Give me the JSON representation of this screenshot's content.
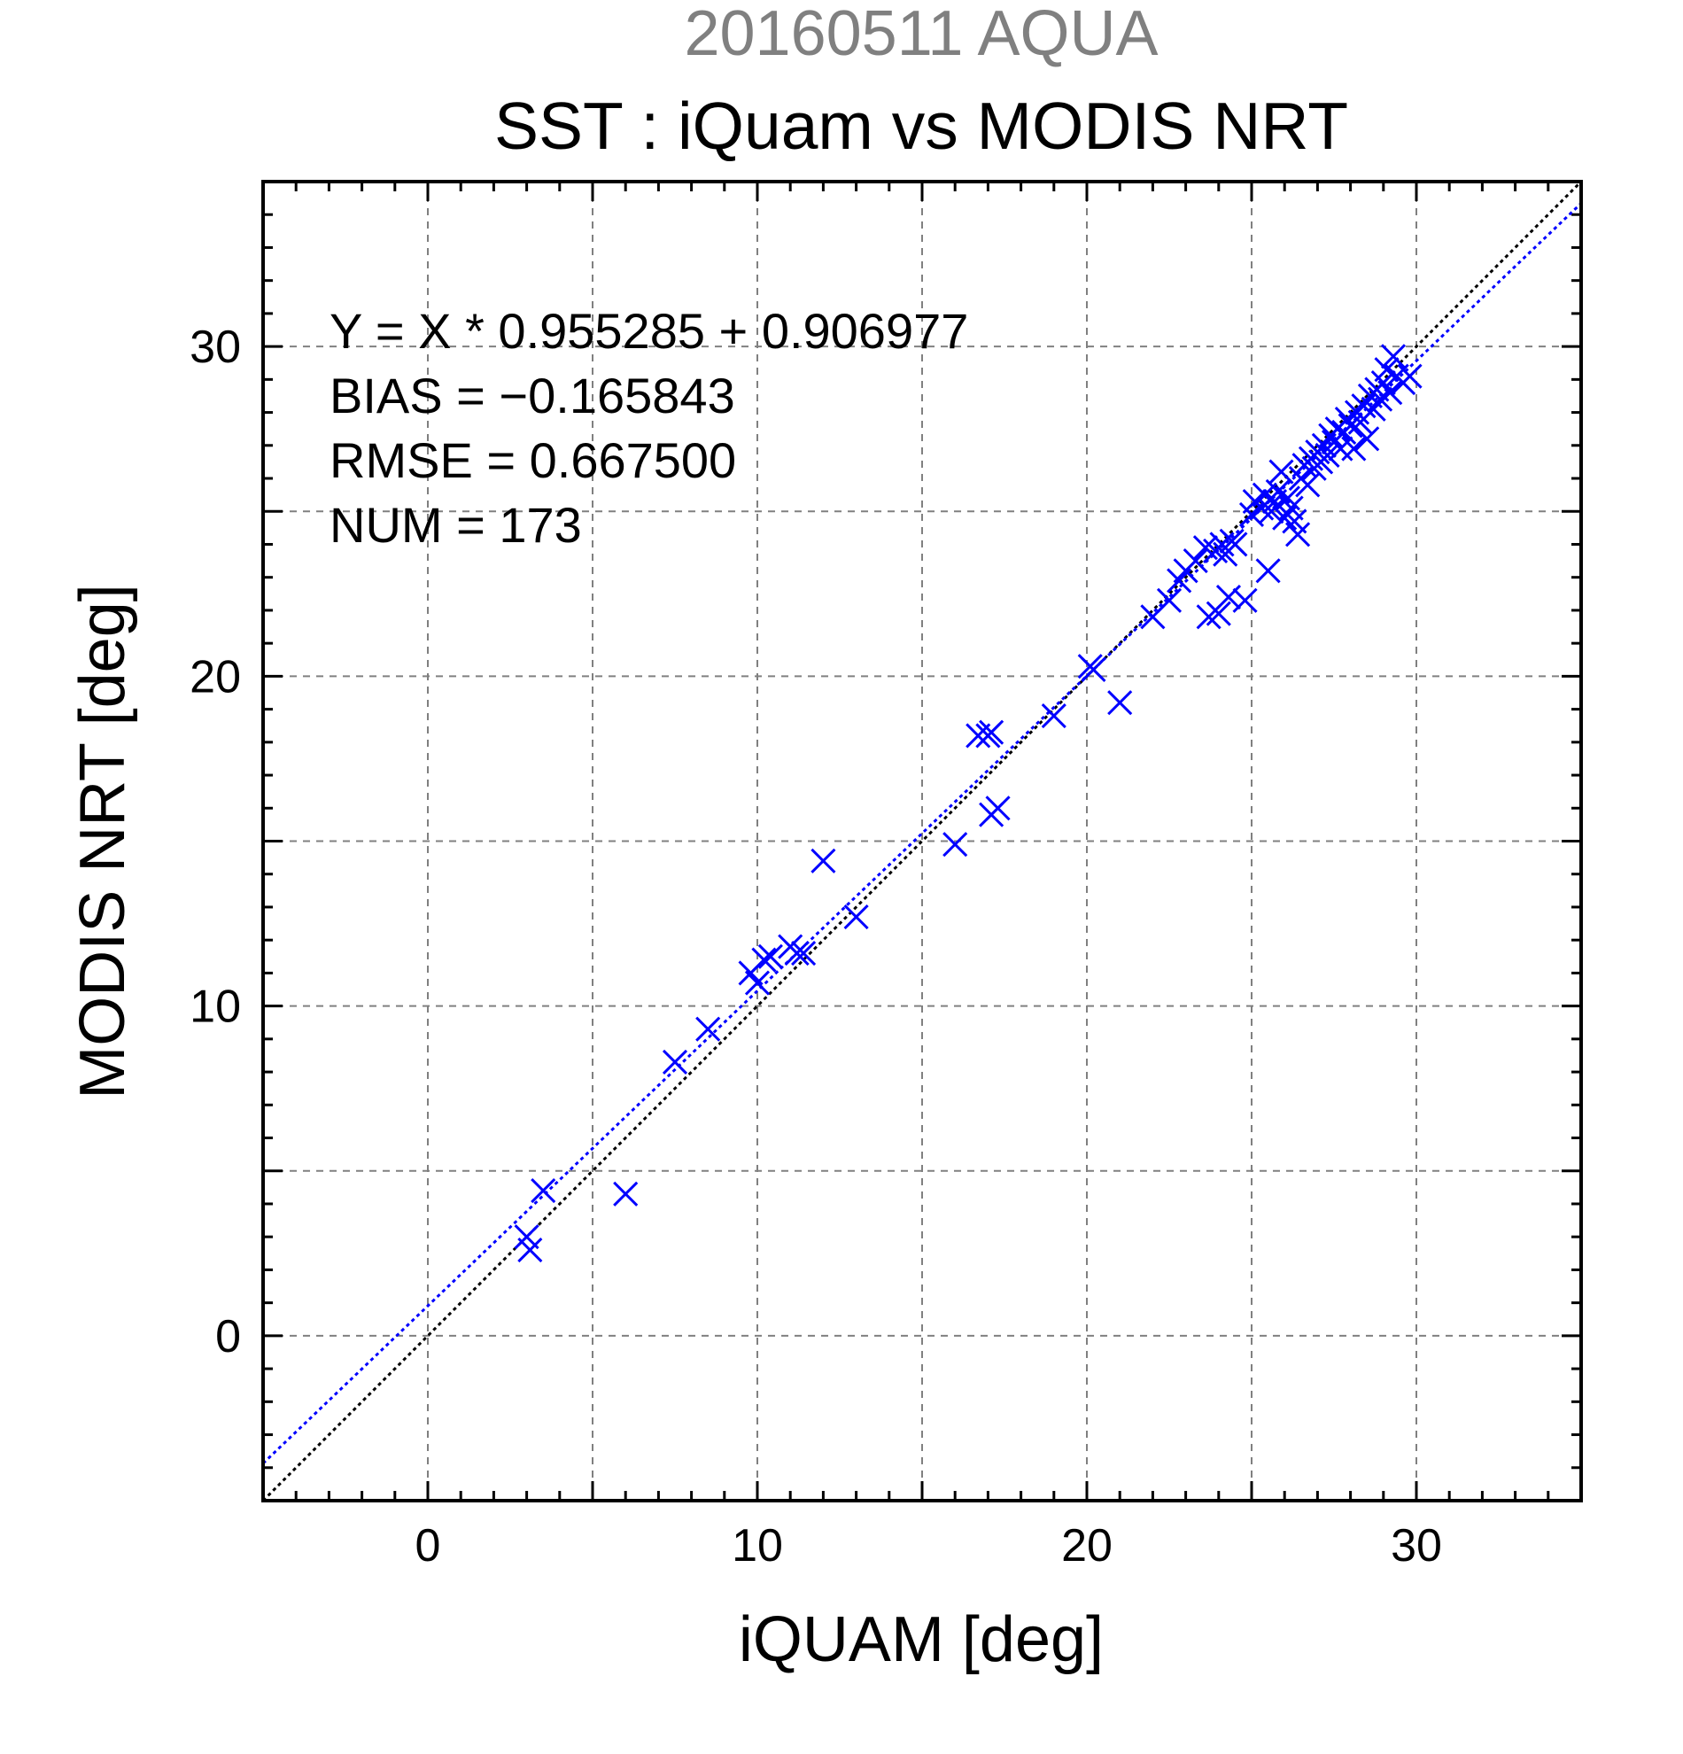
{
  "chart_data": {
    "type": "scatter",
    "supertitle": "20160511 AQUA",
    "title": "SST : iQuam vs MODIS NRT",
    "xlabel": "iQUAM [deg]",
    "ylabel": "MODIS NRT [deg]",
    "xlim": [
      -5,
      35
    ],
    "ylim": [
      -5,
      35
    ],
    "xticks": [
      0,
      10,
      20,
      30
    ],
    "yticks": [
      0,
      10,
      20,
      30
    ],
    "grid": true,
    "annotations": [
      "Y = X * 0.955285 + 0.906977",
      "BIAS = −0.165843",
      "RMSE = 0.667500",
      "NUM = 173"
    ],
    "lines": [
      {
        "kind": "identity",
        "slope": 1.0,
        "intercept": 0.0,
        "color": "#000000"
      },
      {
        "kind": "regression",
        "slope": 0.955285,
        "intercept": 0.906977,
        "color": "#0000ff"
      }
    ],
    "marker_color": "#0000ff",
    "series": [
      {
        "marker": "x",
        "points": [
          [
            3.0,
            3.0
          ],
          [
            3.1,
            2.6
          ],
          [
            3.5,
            4.4
          ],
          [
            6.0,
            4.3
          ],
          [
            7.5,
            8.3
          ],
          [
            8.5,
            9.3
          ],
          [
            9.8,
            11.0
          ],
          [
            10.0,
            10.7
          ],
          [
            10.2,
            11.4
          ],
          [
            10.4,
            11.5
          ],
          [
            11.0,
            11.8
          ],
          [
            11.2,
            11.6
          ],
          [
            11.4,
            11.6
          ],
          [
            12.0,
            14.4
          ],
          [
            13.0,
            12.7
          ],
          [
            16.0,
            14.9
          ],
          [
            16.7,
            18.2
          ],
          [
            17.0,
            18.2
          ],
          [
            17.1,
            18.3
          ],
          [
            17.1,
            15.8
          ],
          [
            17.3,
            16.0
          ],
          [
            19.0,
            18.8
          ],
          [
            20.1,
            20.3
          ],
          [
            20.2,
            20.2
          ],
          [
            21.0,
            19.2
          ],
          [
            22.0,
            21.8
          ],
          [
            22.5,
            22.3
          ],
          [
            22.8,
            22.9
          ],
          [
            23.0,
            23.2
          ],
          [
            23.3,
            23.5
          ],
          [
            23.6,
            23.9
          ],
          [
            23.7,
            21.8
          ],
          [
            24.0,
            21.9
          ],
          [
            23.9,
            23.8
          ],
          [
            24.1,
            24.0
          ],
          [
            24.2,
            23.7
          ],
          [
            24.4,
            24.1
          ],
          [
            24.5,
            24.0
          ],
          [
            24.3,
            22.4
          ],
          [
            24.8,
            22.3
          ],
          [
            25.0,
            24.9
          ],
          [
            25.1,
            25.3
          ],
          [
            25.3,
            25.1
          ],
          [
            25.4,
            25.5
          ],
          [
            25.5,
            23.2
          ],
          [
            25.6,
            25.0
          ],
          [
            25.7,
            25.3
          ],
          [
            25.8,
            25.6
          ],
          [
            25.9,
            26.2
          ],
          [
            26.0,
            24.8
          ],
          [
            26.1,
            25.4
          ],
          [
            26.2,
            25.1
          ],
          [
            26.3,
            24.7
          ],
          [
            26.4,
            24.3
          ],
          [
            26.5,
            26.0
          ],
          [
            26.6,
            26.4
          ],
          [
            26.7,
            25.8
          ],
          [
            26.8,
            26.6
          ],
          [
            26.9,
            26.3
          ],
          [
            27.0,
            26.8
          ],
          [
            27.1,
            26.5
          ],
          [
            27.2,
            27.0
          ],
          [
            27.3,
            26.7
          ],
          [
            27.4,
            27.3
          ],
          [
            27.5,
            27.1
          ],
          [
            27.6,
            27.5
          ],
          [
            27.7,
            26.9
          ],
          [
            27.8,
            27.4
          ],
          [
            27.9,
            27.8
          ],
          [
            28.0,
            27.6
          ],
          [
            28.1,
            26.9
          ],
          [
            28.2,
            28.0
          ],
          [
            28.3,
            27.7
          ],
          [
            28.4,
            28.2
          ],
          [
            28.5,
            27.2
          ],
          [
            28.6,
            28.5
          ],
          [
            28.7,
            28.1
          ],
          [
            28.8,
            28.7
          ],
          [
            28.9,
            28.4
          ],
          [
            29.0,
            28.9
          ],
          [
            29.1,
            29.3
          ],
          [
            29.2,
            28.6
          ],
          [
            29.3,
            29.7
          ],
          [
            29.4,
            29.1
          ],
          [
            29.6,
            28.9
          ],
          [
            29.8,
            29.1
          ]
        ]
      }
    ]
  }
}
